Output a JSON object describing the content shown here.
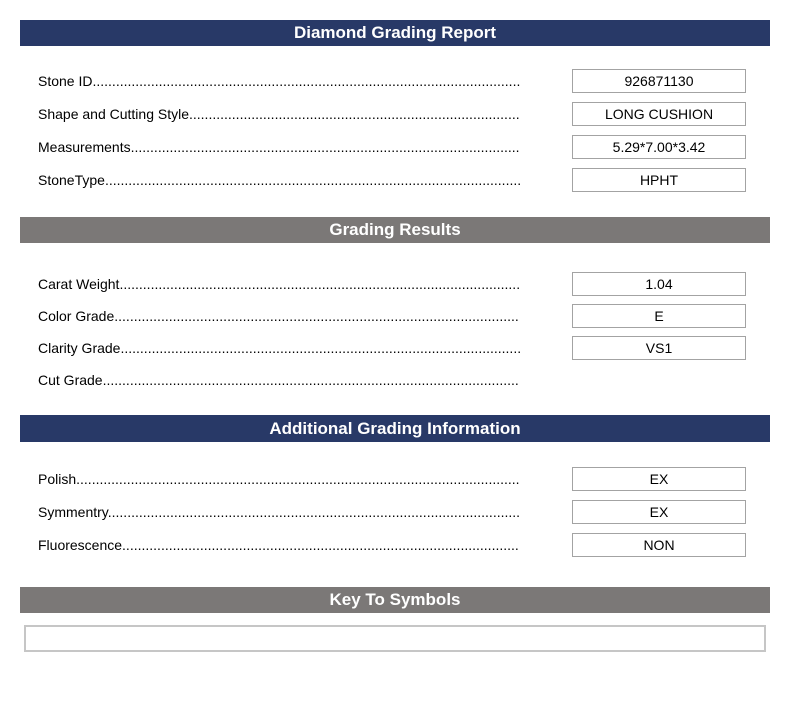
{
  "ui": {
    "leader_dots": "........................................................................................................................................................................................................",
    "colors": {
      "header_navy": "#283967",
      "header_gray": "#7B7877",
      "header_text": "#FFFFFF",
      "value_box_border": "#A3A3A3",
      "symbols_box_border": "#C6C6C6"
    }
  },
  "sections": [
    {
      "title": "Diamond Grading Report",
      "rows": [
        {
          "label": "Stone ID",
          "value": "926871130"
        },
        {
          "label": "Shape and Cutting Style",
          "value": "LONG CUSHION"
        },
        {
          "label": "Measurements",
          "value": "5.29*7.00*3.42"
        },
        {
          "label": "StoneType",
          "value": "HPHT"
        }
      ]
    },
    {
      "title": "Grading Results",
      "rows": [
        {
          "label": "Carat Weight",
          "value": "1.04"
        },
        {
          "label": "Color Grade",
          "value": "E"
        },
        {
          "label": "Clarity Grade",
          "value": "VS1"
        },
        {
          "label": "Cut Grade"
        }
      ]
    },
    {
      "title": "Additional Grading Information",
      "rows": [
        {
          "label": "Polish",
          "value": "EX"
        },
        {
          "label": "Symmentry",
          "value": "EX"
        },
        {
          "label": "Fluorescence",
          "value": "NON"
        }
      ]
    },
    {
      "title": "Key To Symbols",
      "content": ""
    }
  ]
}
